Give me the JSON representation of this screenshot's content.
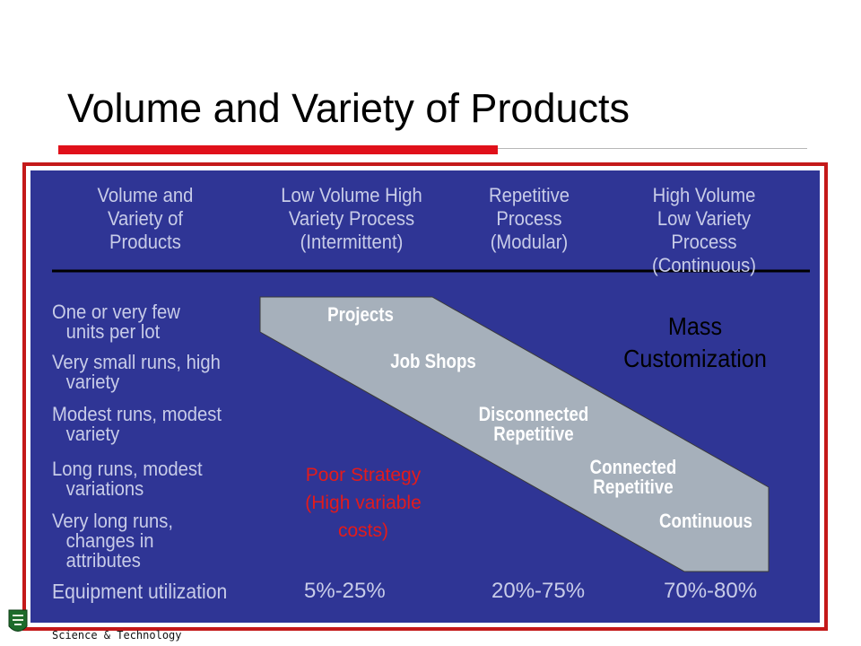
{
  "title": "Volume and Variety of Products",
  "headers": [
    {
      "lines": [
        "Volume and",
        "Variety of",
        "Products"
      ]
    },
    {
      "lines": [
        "Low Volume High",
        "Variety Process",
        "(Intermittent)"
      ]
    },
    {
      "lines": [
        "Repetitive",
        "Process",
        "(Modular)"
      ]
    },
    {
      "lines": [
        "High Volume",
        "Low Variety",
        "Process",
        "(Continuous)"
      ]
    }
  ],
  "rows": [
    {
      "line1": "One or very few",
      "line2": "units per lot"
    },
    {
      "line1": "Very small runs, high",
      "line2": "variety"
    },
    {
      "line1": "Modest runs, modest",
      "line2": "variety"
    },
    {
      "line1": "Long runs, modest",
      "line2": "variations"
    },
    {
      "line1": "Very long runs,",
      "line2": "changes in",
      "line3": "attributes"
    }
  ],
  "band_labels": {
    "projects": "Projects",
    "job_shops": "Job Shops",
    "disconnected": [
      "Disconnected",
      "Repetitive"
    ],
    "connected": [
      "Connected",
      "Repetitive"
    ],
    "continuous": "Continuous"
  },
  "mass_customization": [
    "Mass",
    "Customization"
  ],
  "poor_strategy": [
    "Poor Strategy",
    "(High variable",
    "costs)"
  ],
  "utilization": {
    "label": "Equipment utilization",
    "values": [
      "5%-25%",
      "20%-75%",
      "70%-80%"
    ]
  },
  "footer": "Science & Technology",
  "colors": {
    "panel_background": "#2f3595",
    "band_fill": "#a6b0bb",
    "poor_strategy": "#e31b1b",
    "accent_bar": "#e0101a"
  }
}
